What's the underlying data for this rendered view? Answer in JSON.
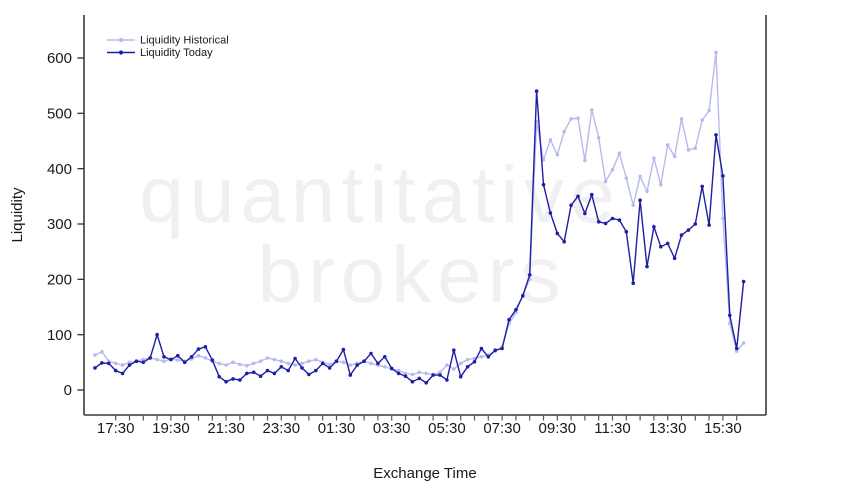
{
  "watermark": {
    "line1": "quantitative",
    "line2": "brokers"
  },
  "colors": {
    "background": "#ffffff",
    "axis": "#3a3a3a",
    "tick": "#555555",
    "tick_label": "#1a1a1a",
    "watermark": "#f0f0f2",
    "historical": "#b7baf0",
    "today": "#1e1ea6"
  },
  "chart_data": {
    "type": "line",
    "title": "",
    "xlabel": "Exchange Time",
    "ylabel": "Liquidity",
    "ylim": [
      0,
      600
    ],
    "grid": false,
    "legend_position": "top-left",
    "x_start_time": "16:45",
    "point_interval_minutes": 15,
    "x_minor_tick_interval_minutes": 30,
    "x_tick_labels": [
      "17:30",
      "19:30",
      "21:30",
      "23:30",
      "01:30",
      "03:30",
      "05:30",
      "07:30",
      "09:30",
      "11:30",
      "13:30",
      "15:30"
    ],
    "y_tick_labels": [
      "0",
      "100",
      "200",
      "300",
      "400",
      "500",
      "600"
    ],
    "series": [
      {
        "name": "Liquidity Historical",
        "color": "#b7baf0",
        "marker": "point",
        "values": [
          63,
          69,
          52,
          48,
          45,
          50,
          52,
          55,
          58,
          55,
          52,
          56,
          54,
          52,
          56,
          62,
          58,
          52,
          48,
          45,
          50,
          46,
          44,
          48,
          52,
          58,
          55,
          52,
          48,
          45,
          48,
          52,
          55,
          50,
          46,
          52,
          50,
          45,
          48,
          52,
          48,
          45,
          42,
          38,
          35,
          30,
          28,
          32,
          30,
          28,
          32,
          45,
          38,
          48,
          55,
          57,
          60,
          63,
          70,
          78,
          120,
          140,
          172,
          200,
          485,
          416,
          452,
          425,
          467,
          490,
          491,
          415,
          506,
          456,
          377,
          398,
          428,
          383,
          334,
          386,
          359,
          419,
          371,
          443,
          422,
          490,
          434,
          437,
          488,
          505,
          610,
          310,
          120,
          70,
          85
        ]
      },
      {
        "name": "Liquidity Today",
        "color": "#1e1ea6",
        "marker": "point",
        "values": [
          40,
          49,
          48,
          35,
          30,
          45,
          52,
          50,
          58,
          100,
          60,
          55,
          62,
          50,
          60,
          74,
          78,
          54,
          24,
          15,
          20,
          18,
          30,
          32,
          25,
          35,
          30,
          42,
          35,
          57,
          40,
          28,
          35,
          48,
          40,
          52,
          73,
          27,
          45,
          52,
          66,
          48,
          60,
          39,
          30,
          25,
          15,
          21,
          13,
          27,
          27,
          18,
          72,
          24,
          42,
          51,
          75,
          60,
          72,
          75,
          127,
          145,
          170,
          208,
          540,
          371,
          320,
          283,
          268,
          334,
          350,
          319,
          353,
          304,
          301,
          310,
          307,
          286,
          193,
          343,
          223,
          295,
          259,
          265,
          238,
          280,
          289,
          300,
          368,
          298,
          461,
          387,
          135,
          75,
          196
        ]
      }
    ]
  }
}
